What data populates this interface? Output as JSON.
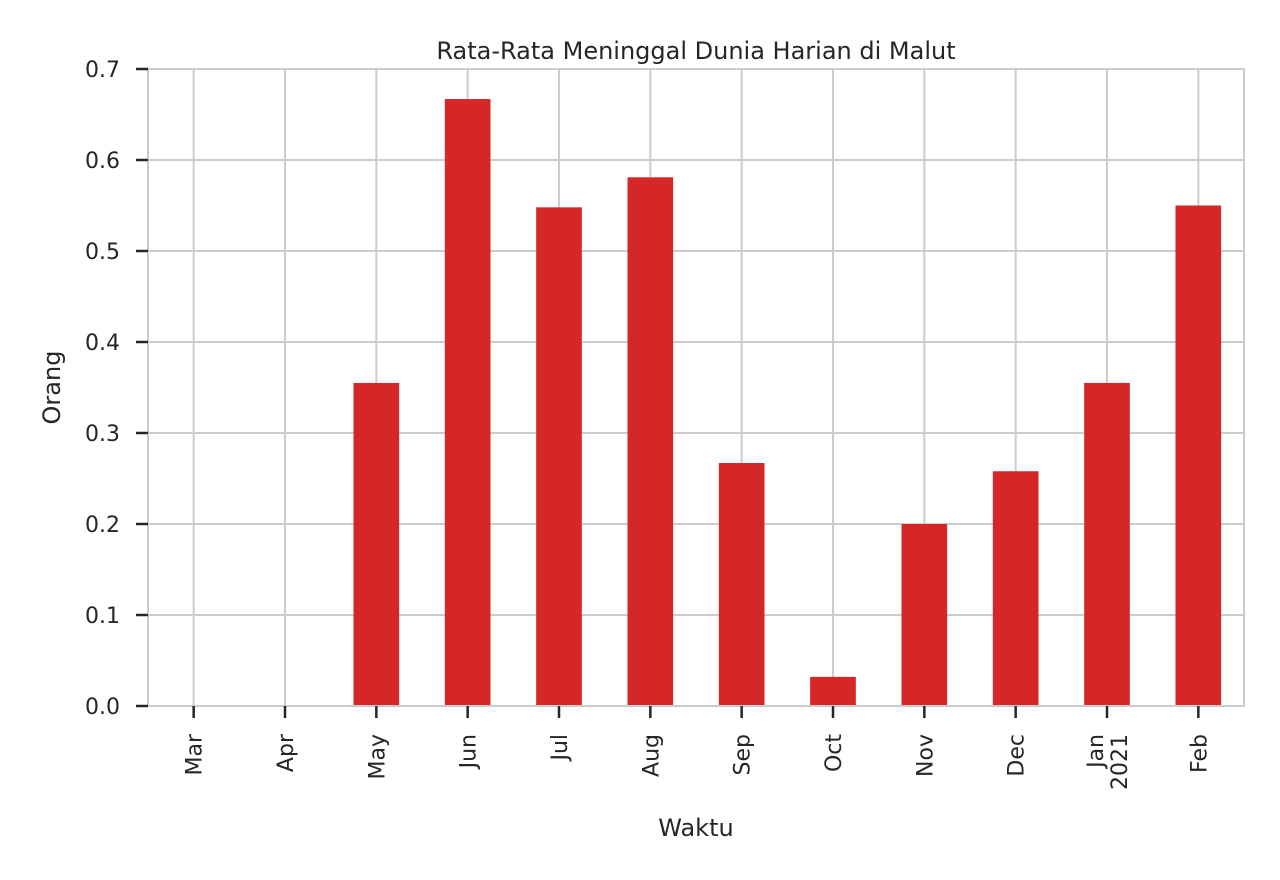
{
  "chart_data": {
    "type": "bar",
    "title": "Rata-Rata Meninggal Dunia Harian di Malut",
    "xlabel": "Waktu",
    "ylabel": "Orang",
    "categories": [
      "Mar",
      "Apr",
      "May",
      "Jun",
      "Jul",
      "Aug",
      "Sep",
      "Oct",
      "Nov",
      "Dec",
      "Jan",
      "Feb"
    ],
    "category_sublabels": [
      "",
      "",
      "",
      "",
      "",
      "",
      "",
      "",
      "",
      "",
      "2021",
      ""
    ],
    "values": [
      0.0,
      0.0,
      0.355,
      0.667,
      0.548,
      0.581,
      0.267,
      0.032,
      0.2,
      0.258,
      0.355,
      0.55
    ],
    "ylim": [
      0,
      0.7
    ],
    "yticks": [
      0.0,
      0.1,
      0.2,
      0.3,
      0.4,
      0.5,
      0.6,
      0.7
    ],
    "ytick_labels": [
      "0.0",
      "0.1",
      "0.2",
      "0.3",
      "0.4",
      "0.5",
      "0.6",
      "0.7"
    ],
    "grid": true,
    "colors": {
      "bar": "#d62728",
      "grid": "#cccccc",
      "axis": "#cccccc",
      "text": "#262626"
    }
  }
}
